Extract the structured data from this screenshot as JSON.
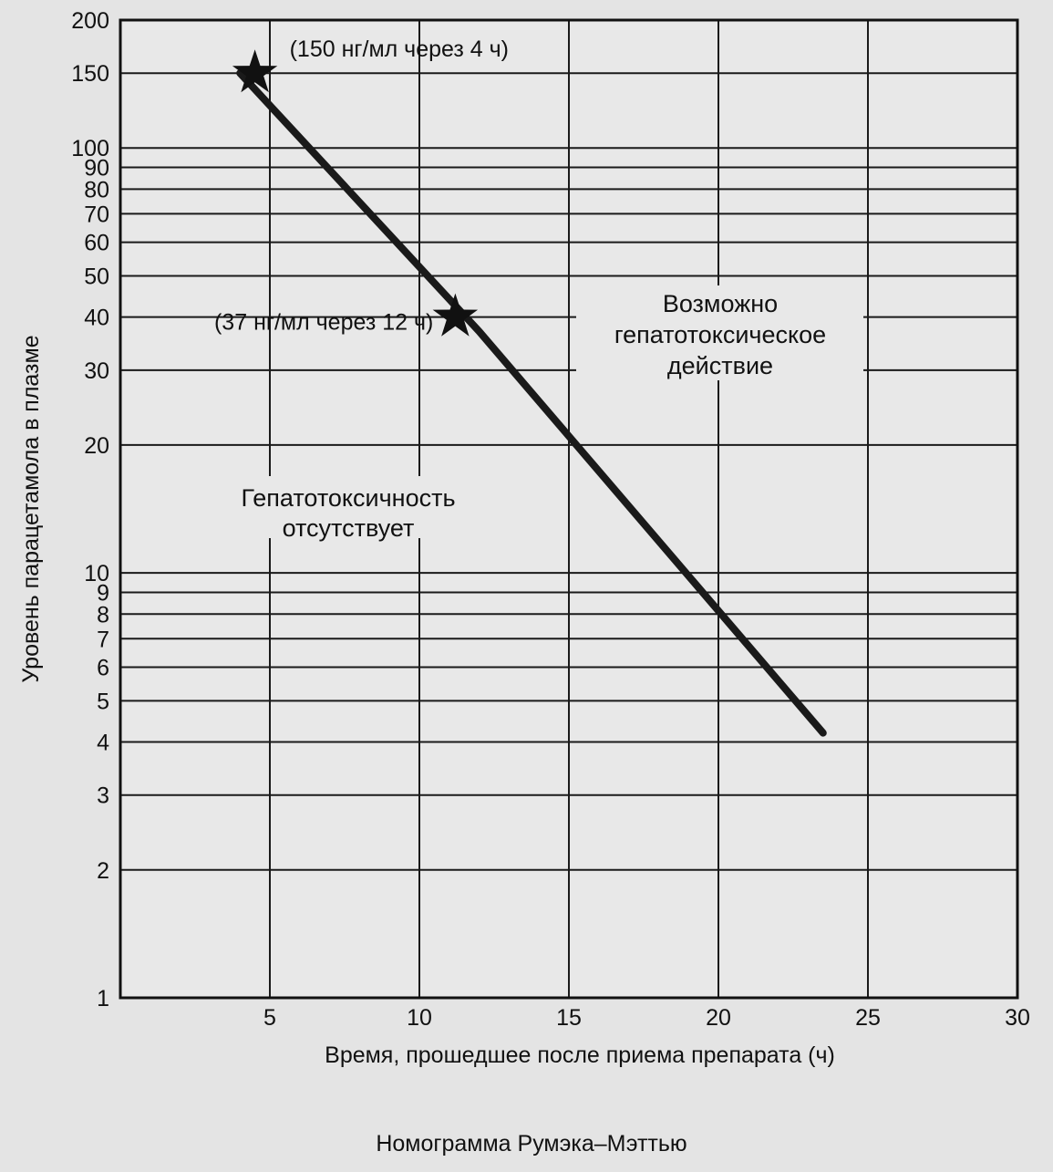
{
  "chart_data": {
    "type": "line",
    "title": "",
    "caption": "Номограмма Румэка–Мэттью",
    "xlabel": "Время, прошедшее после приема препарата (ч)",
    "ylabel": "Уровень парацетамола в плазме",
    "xlim": [
      0,
      30
    ],
    "ylim": [
      1,
      200
    ],
    "yscale": "log",
    "grid": true,
    "legend": "none",
    "x_ticks": [
      5,
      10,
      15,
      20,
      25,
      30
    ],
    "y_ticks": [
      1,
      2,
      3,
      4,
      5,
      6,
      7,
      8,
      9,
      10,
      20,
      30,
      40,
      50,
      60,
      70,
      80,
      90,
      100,
      150,
      200
    ],
    "series": [
      {
        "x": [
          4,
          12,
          23.5
        ],
        "y": [
          150,
          37,
          4.2
        ],
        "color": "#1a1a1a"
      }
    ],
    "markers": [
      {
        "x": 4.5,
        "y": 150,
        "shape": "star",
        "label": "(150 нг/мл через 4 ч)"
      },
      {
        "x": 11.2,
        "y": 40,
        "shape": "star",
        "label": "(37 нг/мл через 12 ч)"
      }
    ],
    "regions": [
      {
        "lines": [
          "Гепатотоксичность",
          "отсутствует"
        ]
      },
      {
        "lines": [
          "Возможно",
          "гепатотоксическое",
          "действие"
        ]
      }
    ]
  }
}
